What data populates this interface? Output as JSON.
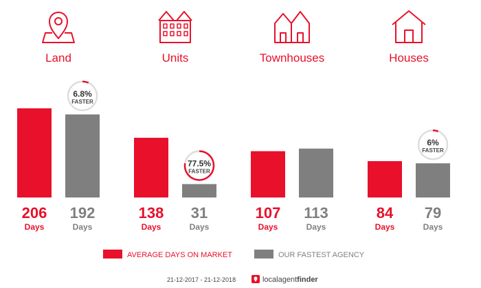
{
  "chart_data": {
    "type": "bar",
    "categories": [
      "Land",
      "Units",
      "Townhouses",
      "Houses"
    ],
    "series": [
      {
        "name": "AVERAGE DAYS ON MARKET",
        "values": [
          206,
          138,
          107,
          84
        ]
      },
      {
        "name": "OUR FASTEST AGENCY",
        "values": [
          192,
          31,
          113,
          79
        ]
      }
    ],
    "ylim": [
      0,
      260
    ],
    "value_unit": "Days",
    "badges": [
      {
        "category": "Land",
        "percent_text": "6.8%",
        "percent": 6.8,
        "word": "FASTER"
      },
      {
        "category": "Units",
        "percent_text": "77.5%",
        "percent": 77.5,
        "word": "FASTER"
      },
      {
        "category": "Houses",
        "percent_text": "6%",
        "percent": 6,
        "word": "FASTER"
      }
    ],
    "legend_placement": "bottom"
  },
  "icons": [
    "map-pin-icon",
    "units-building-icon",
    "townhouses-icon",
    "house-icon"
  ],
  "colors": {
    "average": "#e8102a",
    "fastest": "#7f7f7f",
    "badge_ring": "#dddddd"
  },
  "footer": {
    "date_range": "21-12-2017 - 21-12-2018",
    "brand_plain": "localagent",
    "brand_bold": "finder"
  }
}
